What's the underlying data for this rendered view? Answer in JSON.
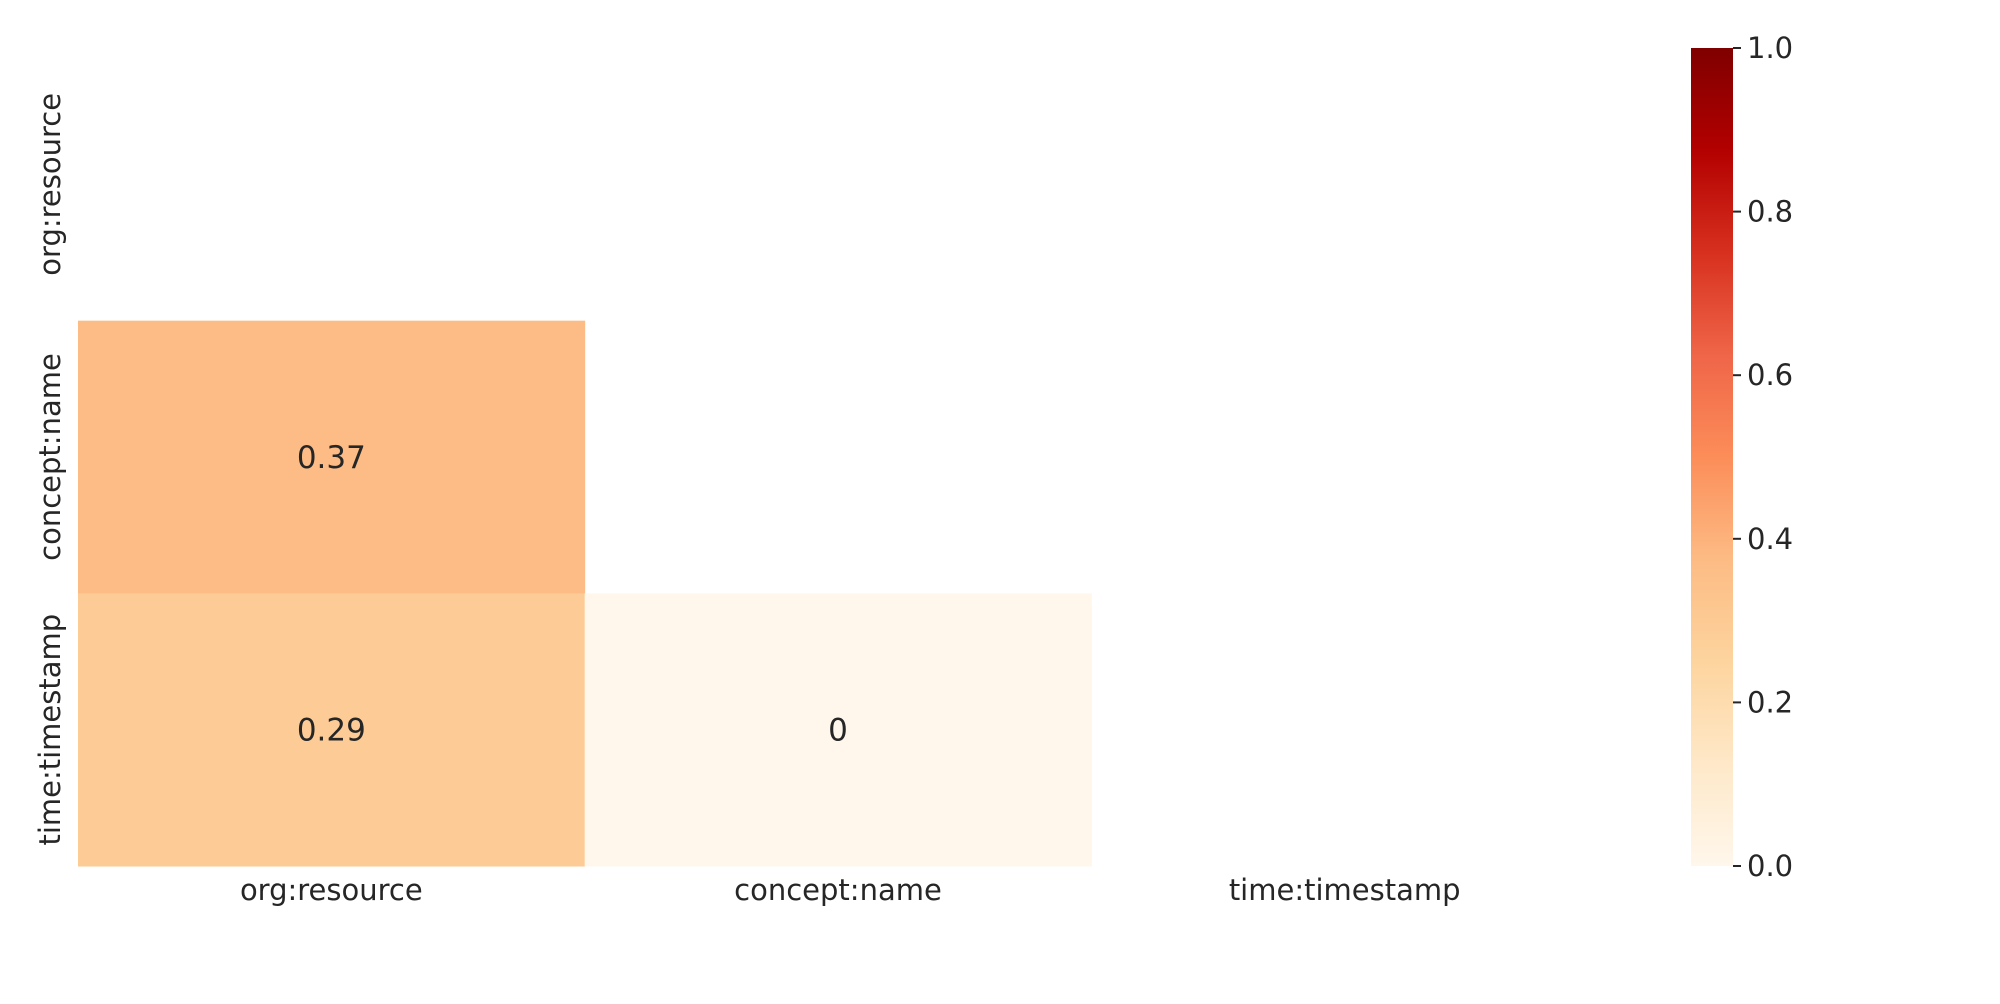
{
  "chart_data": {
    "type": "heatmap",
    "title": "",
    "xlabel": "",
    "ylabel": "",
    "x_categories": [
      "org:resource",
      "concept:name",
      "time:timestamp"
    ],
    "y_categories": [
      "org:resource",
      "concept:name",
      "time:timestamp"
    ],
    "mask": "upper-triangle-including-diagonal",
    "cells": [
      {
        "row": "concept:name",
        "col": "org:resource",
        "value": 0.37,
        "label": "0.37"
      },
      {
        "row": "time:timestamp",
        "col": "org:resource",
        "value": 0.29,
        "label": "0.29"
      },
      {
        "row": "time:timestamp",
        "col": "concept:name",
        "value": 0,
        "label": "0"
      }
    ],
    "colorbar": {
      "colormap": "OrRd",
      "vmin": 0,
      "vmax": 1,
      "ticks": [
        0.0,
        0.2,
        0.4,
        0.6,
        0.8,
        1.0
      ],
      "tick_labels": [
        "0.0",
        "0.2",
        "0.4",
        "0.6",
        "0.8",
        "1.0"
      ]
    },
    "colors": {
      "cell_0_37": "#fcbb89",
      "cell_0_29": "#fccb98",
      "cell_0": "#fff5ea",
      "text": "#262626"
    },
    "legend": "colorbar-right",
    "grid": false
  }
}
